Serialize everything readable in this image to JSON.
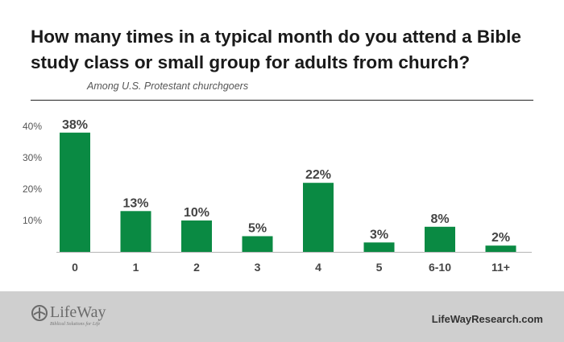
{
  "title": "How many times in a typical month do you attend a Bible study class or small group for adults from church?",
  "subtitle": "Among U.S. Protestant churchgoers",
  "footer": {
    "logo_text": "LifeWay",
    "logo_tagline": "Biblical Solutions for Life",
    "site_url": "LifeWayResearch.com"
  },
  "colors": {
    "bar": "#0a8a43",
    "axis": "#b5b5b5",
    "footer_bg": "#cfcfcf"
  },
  "chart_data": {
    "type": "bar",
    "categories": [
      "0",
      "1",
      "2",
      "3",
      "4",
      "5",
      "6-10",
      "11+"
    ],
    "values": [
      38,
      13,
      10,
      5,
      22,
      3,
      8,
      2
    ],
    "data_labels": [
      "38%",
      "13%",
      "10%",
      "5%",
      "22%",
      "3%",
      "8%",
      "2%"
    ],
    "yticks": [
      10,
      20,
      30,
      40
    ],
    "ytick_labels": [
      "10%",
      "20%",
      "30%",
      "40%"
    ],
    "ylim": [
      0,
      40
    ],
    "grid": false,
    "legend": "none"
  }
}
